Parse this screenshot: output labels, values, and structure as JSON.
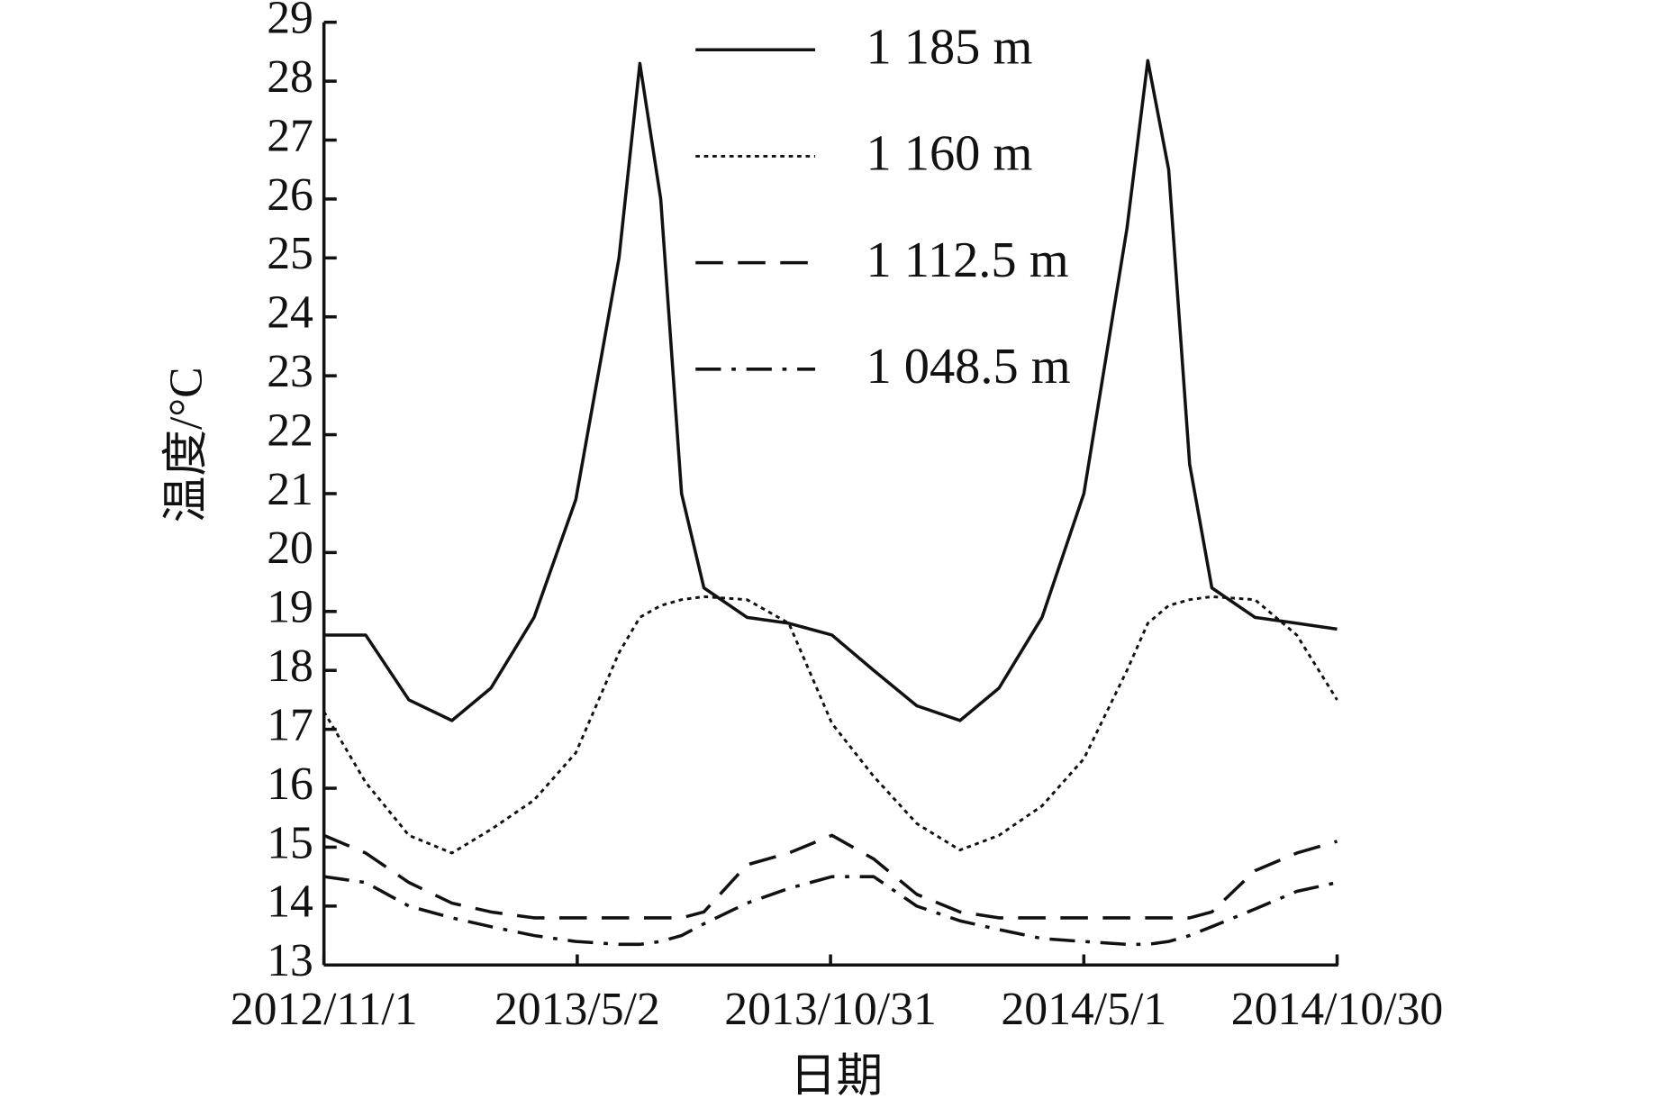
{
  "chart_data": {
    "type": "line",
    "x_label": "日期",
    "y_label": "温度/°C",
    "x": [
      "2012/11/1",
      "2012/12/1",
      "2013/1/1",
      "2013/2/1",
      "2013/3/1",
      "2013/4/1",
      "2013/5/1",
      "2013/6/1",
      "2013/6/16",
      "2013/7/1",
      "2013/7/16",
      "2013/8/1",
      "2013/9/1",
      "2013/10/1",
      "2013/11/1",
      "2013/12/1",
      "2014/1/1",
      "2014/2/1",
      "2014/3/1",
      "2014/4/1",
      "2014/5/1",
      "2014/6/1",
      "2014/6/16",
      "2014/7/1",
      "2014/7/16",
      "2014/8/1",
      "2014/9/1",
      "2014/10/1",
      "2014/10/30"
    ],
    "series": [
      {
        "name": "1 185 m",
        "color": "#111111",
        "line_style": "solid",
        "values": [
          18.6,
          18.6,
          17.5,
          17.15,
          17.7,
          18.9,
          20.9,
          25,
          28.3,
          26,
          21,
          19.4,
          18.9,
          18.8,
          18.6,
          18,
          17.4,
          17.15,
          17.7,
          18.9,
          21,
          25.5,
          28.35,
          26.5,
          21.5,
          19.4,
          18.9,
          18.8,
          18.7
        ]
      },
      {
        "name": "1 160 m",
        "color": "#111111",
        "line_style": "dotted",
        "values": [
          17.3,
          16.1,
          15.2,
          14.9,
          15.3,
          15.8,
          16.6,
          18.3,
          18.9,
          19.1,
          19.2,
          19.25,
          19.2,
          18.8,
          17.1,
          16.2,
          15.4,
          14.95,
          15.2,
          15.7,
          16.5,
          18,
          18.8,
          19.1,
          19.2,
          19.25,
          19.2,
          18.6,
          17.5
        ]
      },
      {
        "name": "1 112.5 m",
        "color": "#111111",
        "line_style": "dashed",
        "values": [
          15.2,
          14.9,
          14.4,
          14.05,
          13.9,
          13.8,
          13.8,
          13.8,
          13.8,
          13.8,
          13.8,
          13.9,
          14.7,
          14.9,
          15.2,
          14.8,
          14.2,
          13.9,
          13.8,
          13.8,
          13.8,
          13.8,
          13.8,
          13.8,
          13.8,
          13.9,
          14.6,
          14.9,
          15.1
        ]
      },
      {
        "name": "1 048.5 m",
        "color": "#111111",
        "line_style": "dashdot",
        "values": [
          14.5,
          14.4,
          14,
          13.8,
          13.65,
          13.5,
          13.4,
          13.35,
          13.35,
          13.4,
          13.5,
          13.7,
          14.05,
          14.3,
          14.5,
          14.5,
          14,
          13.75,
          13.6,
          13.45,
          13.4,
          13.35,
          13.35,
          13.4,
          13.5,
          13.65,
          13.95,
          14.25,
          14.4
        ]
      }
    ],
    "xlim": [
      "2012/11/1",
      "2014/10/30"
    ],
    "xticks": [
      "2012/11/1",
      "2013/5/2",
      "2013/10/31",
      "2014/5/1",
      "2014/10/30"
    ],
    "ylim": [
      13,
      29
    ],
    "yticks": [
      13,
      14,
      15,
      16,
      17,
      18,
      19,
      20,
      21,
      22,
      23,
      24,
      25,
      26,
      27,
      28,
      29
    ],
    "legend": "top"
  }
}
